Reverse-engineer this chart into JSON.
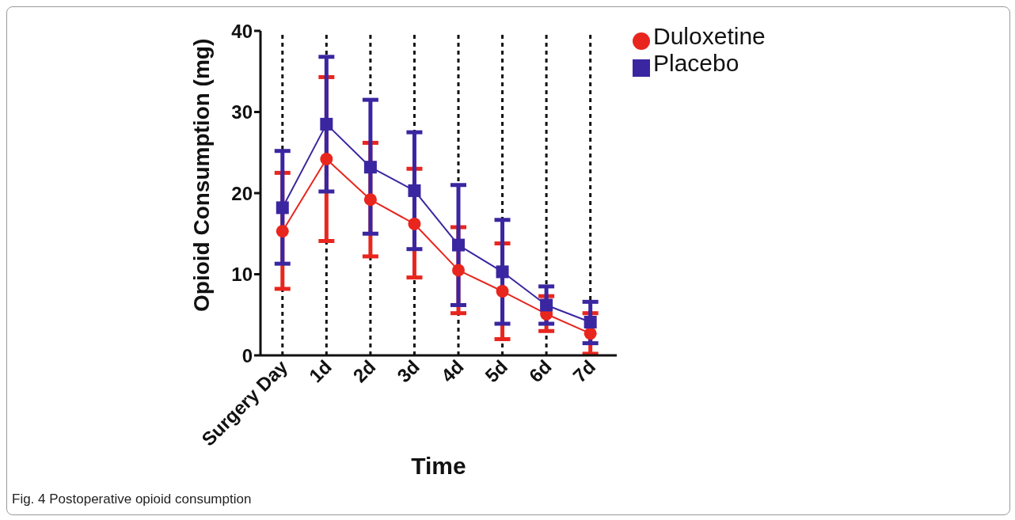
{
  "chart_data": {
    "type": "line",
    "xlabel": "Time",
    "ylabel": "Opioid Consumption (mg)",
    "categories": [
      "Surgery Day",
      "1d",
      "2d",
      "3d",
      "4d",
      "5d",
      "6d",
      "7d"
    ],
    "series": [
      {
        "name": "Duloxetine",
        "color": "#e8261e",
        "marker": "circle",
        "values": [
          15.3,
          24.2,
          19.2,
          16.2,
          10.5,
          7.9,
          5.1,
          2.7
        ],
        "errors": [
          [
            8.2,
            22.5
          ],
          [
            14.1,
            34.3
          ],
          [
            12.2,
            26.2
          ],
          [
            9.6,
            23.0
          ],
          [
            5.2,
            15.8
          ],
          [
            2.0,
            13.8
          ],
          [
            3.0,
            7.3
          ],
          [
            0.2,
            5.2
          ]
        ]
      },
      {
        "name": "Placebo",
        "color": "#3a26a0",
        "marker": "square",
        "values": [
          18.2,
          28.5,
          23.2,
          20.3,
          13.6,
          10.3,
          6.2,
          4.1
        ],
        "errors": [
          [
            11.3,
            25.2
          ],
          [
            20.2,
            36.8
          ],
          [
            15.0,
            31.5
          ],
          [
            13.1,
            27.5
          ],
          [
            6.2,
            21.0
          ],
          [
            3.9,
            16.7
          ],
          [
            3.9,
            8.5
          ],
          [
            1.5,
            6.6
          ]
        ]
      }
    ],
    "ylim": [
      0,
      40
    ],
    "yticks": [
      0,
      10,
      20,
      30,
      40
    ],
    "grid": "x",
    "legend": "top right",
    "annotations": [
      "Fig. 4  Postoperative opioid consumption"
    ]
  }
}
